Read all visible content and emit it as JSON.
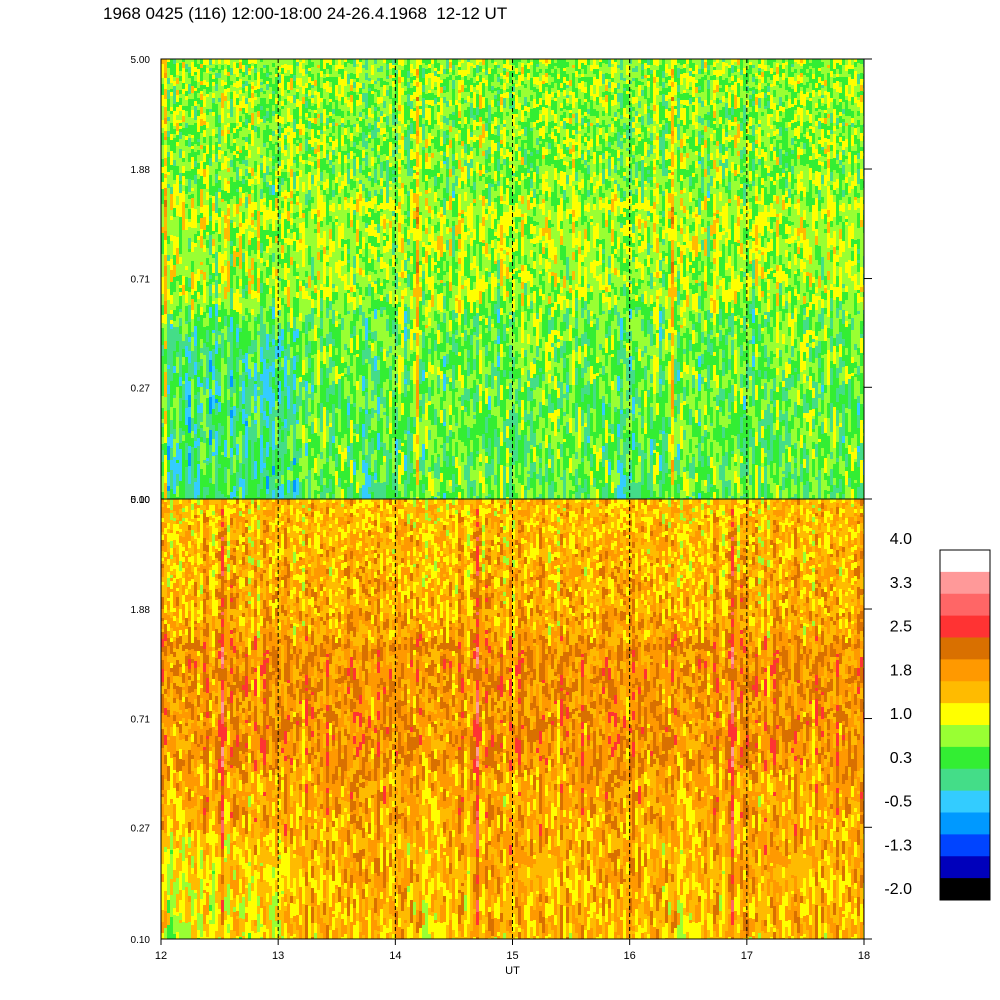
{
  "title": "1968 0425 (116) 12:00-18:00 24-26.4.1968  12-12 UT",
  "chart_data": {
    "type": "heatmap",
    "title": "1968 0425 (116) 12:00-18:00 24-26.4.1968  12-12 UT",
    "xlabel": "UT",
    "x_ticks": [
      12,
      13,
      14,
      15,
      16,
      17,
      18
    ],
    "xlim": [
      12,
      18
    ],
    "y_scale": "log",
    "dashed_vertical_lines_at": [
      13,
      14,
      15,
      16,
      17
    ],
    "panels": [
      {
        "name": "",
        "y_ticks": [
          "5.00",
          "1.88",
          "0.71",
          "0.27",
          "0.10"
        ],
        "ylim": [
          0.1,
          5.0
        ],
        "dominant_levels": "green / yellow (0.3 to 1.0), greener at low frequencies"
      },
      {
        "name": "",
        "y_ticks": [
          "5.00",
          "1.88",
          "0.71",
          "0.27",
          "0.10"
        ],
        "ylim": [
          0.1,
          5.0
        ],
        "dominant_levels": "orange / dark orange (1.5 to 2.2), yellow streaks"
      }
    ],
    "colorbar": {
      "labels": [
        "4.0",
        "3.3",
        "2.5",
        "1.8",
        "1.0",
        "0.3",
        "-0.5",
        "-1.3",
        "-2.0"
      ],
      "range": [
        -2.0,
        4.0
      ],
      "colors_top_to_bottom": [
        "#ffffff",
        "#ff9999",
        "#ff6666",
        "#ff3333",
        "#d97000",
        "#ff9900",
        "#ffbb00",
        "#ffff00",
        "#99ff33",
        "#33ee33",
        "#44dd88",
        "#33ccff",
        "#0099ff",
        "#0044ff",
        "#0000bb",
        "#000000"
      ]
    },
    "grid": false,
    "legend": "right"
  }
}
